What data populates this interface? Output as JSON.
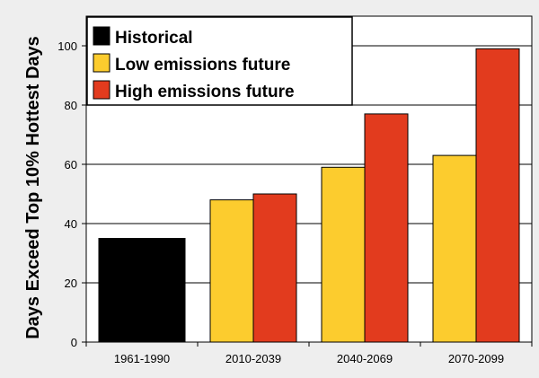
{
  "chart_data": {
    "type": "bar",
    "ylabel": "Days Exceed Top 10% Hottest Days",
    "xlabel": "",
    "ylim": [
      0,
      110
    ],
    "yticks": [
      0,
      20,
      40,
      60,
      80,
      100
    ],
    "grid": true,
    "legend_position": "top-left",
    "categories": [
      "1961-1990",
      "2010-2039",
      "2040-2069",
      "2070-2099"
    ],
    "series": [
      {
        "name": "Historical",
        "color": "#000000",
        "values": [
          35,
          null,
          null,
          null
        ]
      },
      {
        "name": "Low emissions future",
        "color": "#fccc2e",
        "values": [
          null,
          48,
          59,
          63
        ]
      },
      {
        "name": "High emissions future",
        "color": "#e23b1e",
        "values": [
          null,
          50,
          77,
          99
        ]
      }
    ]
  }
}
